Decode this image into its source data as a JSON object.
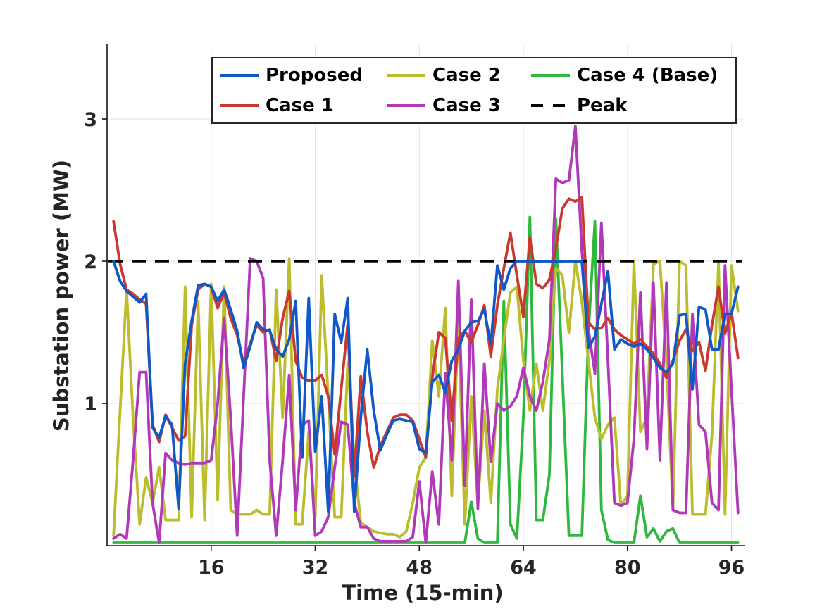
{
  "figure": {
    "background": "#ffffff"
  },
  "chart_data": {
    "type": "line",
    "title": "",
    "xlabel": "Time (15-min)",
    "ylabel": "Substation power (MW)",
    "xlim": [
      0,
      98
    ],
    "ylim": [
      0,
      3.53
    ],
    "xticks": [
      16,
      32,
      48,
      64,
      80,
      96
    ],
    "yticks": [
      1,
      2,
      3
    ],
    "grid": true,
    "grid_color": "#e6e6e6",
    "axis_color": "#141414",
    "legend_position": "top-center",
    "x_start": 1,
    "draw_order": [
      4,
      2,
      3,
      1,
      5,
      0
    ],
    "series": [
      {
        "name": "Proposed",
        "color": "#0f58c8",
        "width": 3.8,
        "values": [
          2.0,
          1.86,
          1.79,
          1.75,
          1.71,
          1.77,
          0.83,
          0.76,
          0.91,
          0.85,
          0.26,
          1.28,
          1.58,
          1.83,
          1.84,
          1.82,
          1.72,
          1.8,
          1.66,
          1.51,
          1.25,
          1.4,
          1.57,
          1.52,
          1.51,
          1.38,
          1.33,
          1.45,
          1.72,
          0.62,
          1.74,
          0.66,
          1.05,
          0.24,
          1.63,
          1.43,
          1.74,
          0.24,
          0.9,
          1.38,
          0.95,
          0.67,
          0.78,
          0.88,
          0.89,
          0.88,
          0.87,
          0.68,
          0.65,
          1.15,
          1.2,
          1.08,
          1.3,
          1.38,
          1.51,
          1.57,
          1.58,
          1.66,
          1.41,
          1.97,
          1.8,
          1.95,
          2.0,
          2.0,
          2.0,
          2.0,
          2.0,
          2.0,
          2.0,
          2.0,
          2.0,
          2.0,
          2.0,
          1.39,
          1.47,
          1.7,
          1.93,
          1.38,
          1.45,
          1.42,
          1.4,
          1.42,
          1.38,
          1.32,
          1.25,
          1.22,
          1.28,
          1.62,
          1.63,
          1.1,
          1.68,
          1.66,
          1.38,
          1.38,
          1.63,
          1.63,
          1.82
        ]
      },
      {
        "name": "Case 1",
        "color": "#c9392f",
        "width": 3.8,
        "values": [
          2.28,
          1.98,
          1.8,
          1.77,
          1.73,
          1.7,
          0.85,
          0.73,
          0.92,
          0.83,
          0.74,
          0.77,
          1.55,
          1.8,
          1.84,
          1.82,
          1.67,
          1.78,
          1.6,
          1.48,
          1.28,
          1.42,
          1.55,
          1.5,
          1.52,
          1.3,
          1.6,
          1.79,
          1.3,
          1.18,
          1.16,
          1.16,
          1.2,
          1.05,
          0.64,
          1.1,
          1.56,
          0.49,
          1.19,
          0.8,
          0.55,
          0.7,
          0.8,
          0.9,
          0.92,
          0.92,
          0.88,
          0.75,
          0.62,
          1.18,
          1.5,
          1.46,
          0.88,
          1.46,
          1.51,
          1.43,
          1.55,
          1.69,
          1.33,
          1.69,
          1.95,
          2.2,
          1.9,
          1.61,
          2.17,
          1.84,
          1.81,
          1.87,
          2.09,
          2.37,
          2.44,
          2.42,
          2.45,
          1.57,
          1.52,
          1.53,
          1.6,
          1.52,
          1.48,
          1.45,
          1.42,
          1.45,
          1.4,
          1.35,
          1.28,
          1.18,
          1.3,
          1.44,
          1.52,
          1.37,
          1.43,
          1.23,
          1.55,
          1.82,
          1.49,
          1.64,
          1.32
        ]
      },
      {
        "name": "Case 2",
        "color": "#bcbd2c",
        "width": 3.8,
        "values": [
          0.07,
          0.95,
          1.8,
          0.9,
          0.15,
          0.48,
          0.3,
          0.55,
          0.18,
          0.18,
          0.18,
          1.82,
          0.2,
          1.72,
          0.18,
          1.84,
          0.32,
          1.82,
          0.25,
          0.22,
          0.22,
          0.22,
          0.25,
          0.22,
          0.22,
          1.8,
          0.9,
          2.02,
          0.15,
          0.15,
          0.8,
          0.2,
          1.9,
          1.05,
          0.2,
          0.2,
          1.29,
          0.6,
          0.16,
          0.13,
          0.1,
          0.09,
          0.08,
          0.08,
          0.06,
          0.1,
          0.3,
          0.55,
          0.62,
          1.44,
          1.05,
          1.67,
          0.35,
          1.58,
          0.15,
          1.05,
          0.3,
          0.95,
          0.3,
          1.1,
          1.45,
          1.78,
          1.82,
          1.3,
          0.95,
          1.28,
          0.95,
          1.3,
          1.95,
          1.9,
          1.5,
          2.0,
          1.71,
          1.3,
          0.9,
          0.75,
          0.85,
          0.9,
          0.28,
          0.35,
          2.0,
          0.8,
          0.9,
          1.98,
          2.0,
          1.28,
          0.25,
          2.0,
          1.97,
          0.22,
          0.22,
          0.22,
          0.78,
          1.99,
          0.22,
          1.97,
          1.65
        ]
      },
      {
        "name": "Case 3",
        "color": "#b138b8",
        "width": 3.8,
        "values": [
          0.05,
          0.08,
          0.05,
          0.6,
          1.22,
          1.22,
          0.3,
          0.02,
          0.65,
          0.6,
          0.58,
          0.57,
          0.58,
          0.58,
          0.58,
          0.6,
          1.0,
          1.6,
          0.9,
          0.07,
          1.05,
          2.02,
          2.0,
          1.88,
          0.6,
          0.07,
          0.6,
          1.2,
          0.25,
          0.85,
          0.88,
          0.07,
          0.1,
          0.2,
          0.55,
          0.87,
          0.85,
          0.3,
          0.13,
          0.13,
          0.05,
          0.03,
          0.03,
          0.03,
          0.03,
          0.03,
          0.06,
          0.45,
          0.02,
          0.52,
          0.15,
          1.21,
          0.6,
          1.86,
          0.42,
          1.73,
          0.26,
          1.28,
          0.59,
          1.0,
          0.95,
          0.98,
          1.05,
          1.25,
          1.05,
          0.95,
          1.15,
          1.45,
          2.58,
          2.55,
          2.57,
          2.95,
          2.07,
          1.52,
          1.21,
          2.27,
          1.3,
          0.3,
          0.28,
          0.3,
          0.75,
          1.78,
          0.68,
          1.85,
          0.6,
          1.85,
          0.25,
          0.23,
          0.23,
          1.63,
          0.85,
          0.8,
          0.3,
          0.25,
          1.97,
          1.1,
          0.23
        ]
      },
      {
        "name": "Case 4 (Base)",
        "color": "#2eb93e",
        "width": 3.8,
        "values": [
          0.02,
          0.02,
          0.02,
          0.02,
          0.02,
          0.02,
          0.02,
          0.02,
          0.02,
          0.02,
          0.02,
          0.02,
          0.02,
          0.02,
          0.02,
          0.02,
          0.02,
          0.02,
          0.02,
          0.02,
          0.02,
          0.02,
          0.02,
          0.02,
          0.02,
          0.02,
          0.02,
          0.02,
          0.02,
          0.02,
          0.02,
          0.02,
          0.02,
          0.02,
          0.02,
          0.02,
          0.02,
          0.02,
          0.02,
          0.02,
          0.02,
          0.02,
          0.02,
          0.02,
          0.02,
          0.02,
          0.02,
          0.02,
          0.02,
          0.02,
          0.02,
          0.02,
          0.02,
          0.02,
          0.02,
          0.31,
          0.05,
          0.02,
          0.02,
          0.02,
          1.72,
          0.15,
          0.05,
          0.9,
          2.31,
          0.18,
          0.18,
          0.5,
          2.3,
          1.2,
          0.07,
          0.07,
          0.07,
          1.5,
          2.28,
          0.25,
          0.04,
          0.02,
          0.02,
          0.02,
          0.02,
          0.35,
          0.06,
          0.12,
          0.03,
          0.1,
          0.12,
          0.02,
          0.02,
          0.02,
          0.02,
          0.02,
          0.02,
          0.02,
          0.02,
          0.02,
          0.02
        ]
      },
      {
        "name": "Peak",
        "color": "#000000",
        "width": 3.5,
        "dashed": true,
        "hline": 2.0
      }
    ],
    "legend_entries": [
      {
        "label": "Proposed",
        "color": "#0f58c8",
        "dashed": false
      },
      {
        "label": "Case 1",
        "color": "#c9392f",
        "dashed": false
      },
      {
        "label": "Case 2",
        "color": "#bcbd2c",
        "dashed": false
      },
      {
        "label": "Case 3",
        "color": "#b138b8",
        "dashed": false
      },
      {
        "label": "Case 4 (Base)",
        "color": "#2eb93e",
        "dashed": false
      },
      {
        "label": "Peak",
        "color": "#000000",
        "dashed": true
      }
    ]
  }
}
